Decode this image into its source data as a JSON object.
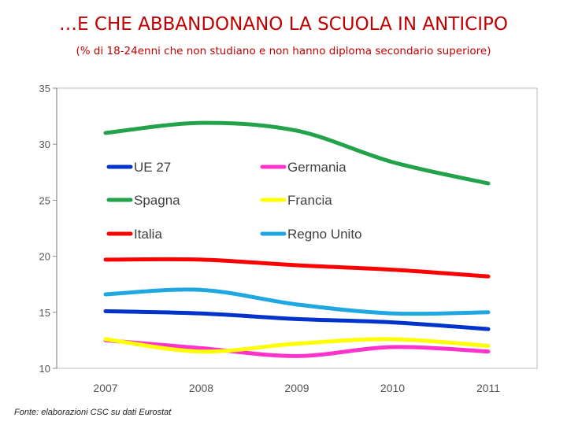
{
  "title": "…E CHE ABBANDONANO LA SCUOLA IN ANTICIPO",
  "subtitle": "(% di 18-24enni che non studiano e non hanno diploma secondario superiore)",
  "source": "Fonte: elaborazioni CSC su dati Eurostat",
  "colors": {
    "title": "#c00000",
    "axis": "#888888",
    "tick_text": "#555555"
  },
  "chart_data": {
    "type": "line",
    "x": [
      "2007",
      "2008",
      "2009",
      "2010",
      "2011"
    ],
    "ylim": [
      10,
      35
    ],
    "yticks": [
      10,
      15,
      20,
      25,
      30,
      35
    ],
    "xlabel": "",
    "ylabel": "",
    "grid": false,
    "series": [
      {
        "name": "UE 27",
        "color": "#0033cc",
        "values": [
          15.1,
          14.9,
          14.4,
          14.1,
          13.5
        ]
      },
      {
        "name": "Germania",
        "color": "#ff33cc",
        "values": [
          12.5,
          11.8,
          11.1,
          11.9,
          11.5
        ]
      },
      {
        "name": "Spagna",
        "color": "#22a34a",
        "values": [
          31.0,
          31.9,
          31.2,
          28.4,
          26.5
        ]
      },
      {
        "name": "Francia",
        "color": "#ffff00",
        "values": [
          12.6,
          11.5,
          12.2,
          12.6,
          12.0
        ]
      },
      {
        "name": "Italia",
        "color": "#ff0000",
        "values": [
          19.7,
          19.7,
          19.2,
          18.8,
          18.2
        ]
      },
      {
        "name": "Regno Unito",
        "color": "#1ea7e1",
        "values": [
          16.6,
          17.0,
          15.7,
          14.9,
          15.0
        ]
      }
    ]
  }
}
